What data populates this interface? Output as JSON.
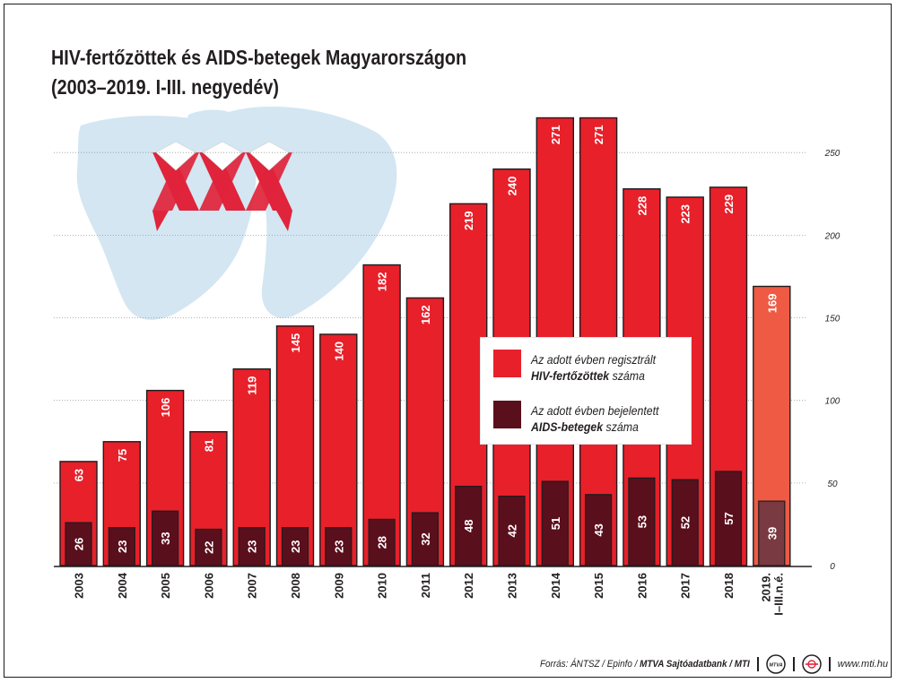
{
  "title_line1": "HIV-fertőzöttek és AIDS-betegek Magyarországon",
  "title_line2": "(2003–2019. I-III. negyedév)",
  "legend": {
    "hiv_line1": "Az adott évben regisztrált",
    "hiv_bold": "HIV-fertőzöttek",
    "hiv_rest": "száma",
    "aids_line1": "Az adott évben bejelentett",
    "aids_bold": "AIDS-betegek",
    "aids_rest": "száma"
  },
  "footer": {
    "source_prefix": "Forrás: ÁNTSZ / Epinfo /",
    "source_bold": "MTVA Sajtóadatbank / MTI",
    "site": "www.mti.hu",
    "logo1_text": "MTVA"
  },
  "colors": {
    "hiv": "#e8202a",
    "hiv_partial": "#ee5a44",
    "aids": "#5a0f1d",
    "aids_partial": "#7a3a41",
    "bar_outline": "#1d1d1d",
    "background_hands": "#d3e6f2",
    "ribbon": "#e0243b"
  },
  "chart_data": {
    "type": "bar",
    "title": "HIV-fertőzöttek és AIDS-betegek Magyarországon (2003–2019. I-III. negyedév)",
    "categories": [
      "2003",
      "2004",
      "2005",
      "2006",
      "2007",
      "2008",
      "2009",
      "2010",
      "2011",
      "2012",
      "2013",
      "2014",
      "2015",
      "2016",
      "2017",
      "2018",
      "2019. I–III.n.é."
    ],
    "series": [
      {
        "name": "Az adott évben regisztrált HIV-fertőzöttek száma",
        "values": [
          63,
          75,
          106,
          81,
          119,
          145,
          140,
          182,
          162,
          219,
          240,
          271,
          271,
          228,
          223,
          229,
          169
        ]
      },
      {
        "name": "Az adott évben bejelentett AIDS-betegek száma",
        "values": [
          26,
          23,
          33,
          22,
          23,
          23,
          23,
          28,
          32,
          48,
          42,
          51,
          43,
          53,
          52,
          57,
          39
        ]
      }
    ],
    "ylim": [
      0,
      250
    ],
    "yticks": [
      0,
      50,
      100,
      150,
      200,
      250
    ],
    "grid": true,
    "y_axis_side": "right",
    "legend_position": "center-right",
    "partial_category_index": 16
  }
}
